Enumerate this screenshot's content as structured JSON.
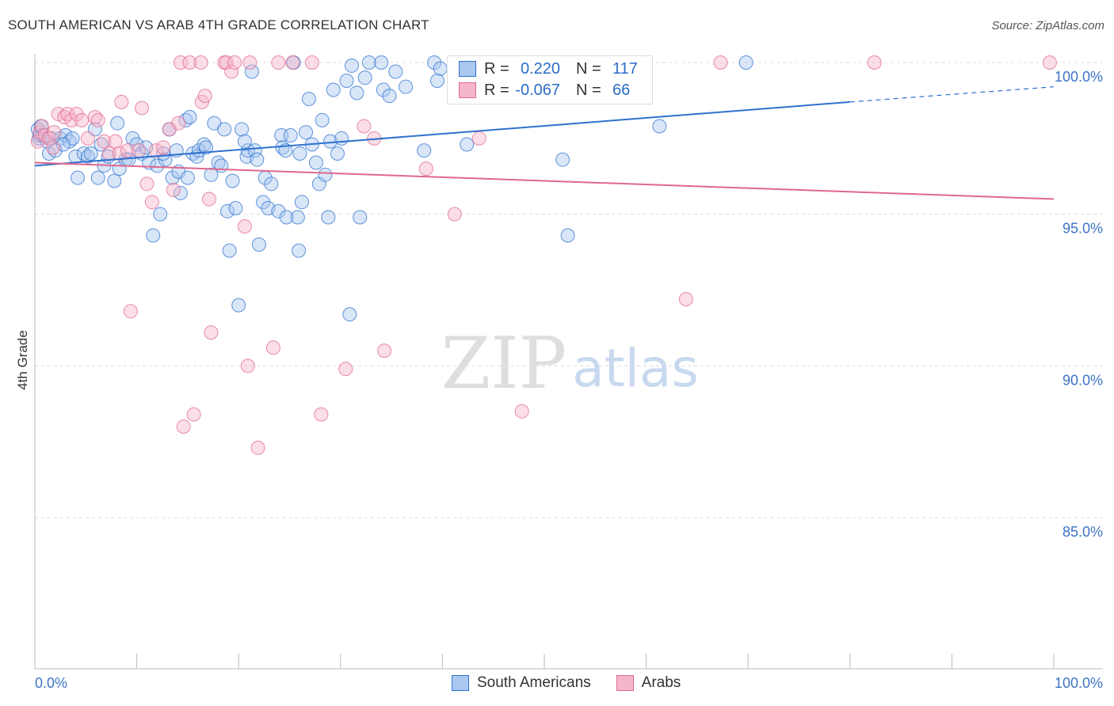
{
  "header": {
    "title": "SOUTH AMERICAN VS ARAB 4TH GRADE CORRELATION CHART",
    "source": "Source: ZipAtlas.com"
  },
  "watermark": {
    "zip": "ZIP",
    "atlas": "atlas"
  },
  "colors": {
    "blue": "#2f72cf",
    "blue_fill": "#a9c7ef",
    "pink": "#e0688f",
    "pink_fill": "#f6b6c9",
    "tick_label": "#3d73c5"
  },
  "legend": {
    "rows": [
      {
        "r_label": "R =",
        "r_value": "0.220",
        "n_label": "N =",
        "n_value": "117"
      },
      {
        "r_label": "R =",
        "r_value": "-0.067",
        "n_label": "N =",
        "n_value": "66"
      }
    ]
  },
  "bottom_legend": {
    "series1": "South Americans",
    "series2": "Arabs"
  },
  "chart_data": {
    "type": "scatter",
    "title": "SOUTH AMERICAN VS ARAB 4TH GRADE CORRELATION CHART",
    "ylabel": "4th Grade",
    "xlabel": "",
    "xlim": [
      0,
      100
    ],
    "ylim": [
      80.5,
      100.3
    ],
    "x_tick_labels": [
      "0.0%",
      "100.0%"
    ],
    "y_ticks": [
      {
        "value": 100,
        "label": "100.0%"
      },
      {
        "value": 95,
        "label": "95.0%"
      },
      {
        "value": 90,
        "label": "90.0%"
      },
      {
        "value": 85,
        "label": "85.0%"
      }
    ],
    "grid": true,
    "legend_position": "top-center",
    "series": [
      {
        "name": "South Americans",
        "color": "#2f72cf",
        "r": 0.22,
        "n": 117,
        "trend": {
          "x": [
            0,
            80
          ],
          "y": [
            96.6,
            98.7
          ],
          "dashed_to": [
            100,
            99.2
          ]
        },
        "points": [
          [
            0.3,
            97.8
          ],
          [
            0.4,
            97.5
          ],
          [
            0.5,
            97.6
          ],
          [
            0.6,
            97.9
          ],
          [
            0.8,
            97.6
          ],
          [
            1.2,
            97.4
          ],
          [
            1.4,
            97.0
          ],
          [
            1.6,
            97.5
          ],
          [
            2.0,
            97.1
          ],
          [
            2.5,
            97.5
          ],
          [
            3.0,
            97.6
          ],
          [
            3.4,
            97.4
          ],
          [
            3.7,
            97.5
          ],
          [
            4.0,
            96.9
          ],
          [
            4.2,
            96.2
          ],
          [
            4.8,
            97.0
          ],
          [
            5.2,
            96.9
          ],
          [
            5.5,
            97.0
          ],
          [
            6.2,
            96.2
          ],
          [
            6.8,
            96.6
          ],
          [
            7.2,
            96.9
          ],
          [
            7.8,
            96.1
          ],
          [
            8.1,
            98.0
          ],
          [
            8.3,
            96.5
          ],
          [
            8.9,
            96.8
          ],
          [
            9.6,
            97.5
          ],
          [
            10.0,
            97.3
          ],
          [
            10.5,
            97.0
          ],
          [
            10.9,
            97.2
          ],
          [
            11.2,
            96.7
          ],
          [
            11.6,
            94.3
          ],
          [
            12.0,
            96.6
          ],
          [
            12.3,
            95.0
          ],
          [
            12.8,
            96.8
          ],
          [
            13.2,
            97.8
          ],
          [
            13.5,
            96.2
          ],
          [
            14.1,
            96.4
          ],
          [
            14.3,
            95.7
          ],
          [
            15.0,
            96.2
          ],
          [
            14.8,
            98.1
          ],
          [
            15.2,
            98.2
          ],
          [
            15.5,
            97.0
          ],
          [
            15.9,
            96.9
          ],
          [
            16.1,
            97.1
          ],
          [
            16.6,
            97.3
          ],
          [
            16.8,
            97.2
          ],
          [
            17.3,
            96.3
          ],
          [
            17.6,
            98.0
          ],
          [
            18.0,
            96.7
          ],
          [
            18.3,
            96.6
          ],
          [
            18.6,
            97.8
          ],
          [
            18.9,
            95.1
          ],
          [
            19.1,
            93.8
          ],
          [
            19.4,
            96.1
          ],
          [
            19.7,
            95.2
          ],
          [
            20.0,
            92.0
          ],
          [
            20.3,
            97.8
          ],
          [
            20.8,
            96.9
          ],
          [
            20.9,
            97.1
          ],
          [
            21.3,
            99.7
          ],
          [
            21.6,
            97.1
          ],
          [
            21.8,
            96.8
          ],
          [
            22.0,
            94.0
          ],
          [
            22.4,
            95.4
          ],
          [
            22.6,
            96.2
          ],
          [
            22.9,
            95.2
          ],
          [
            23.2,
            96.0
          ],
          [
            23.9,
            95.1
          ],
          [
            24.2,
            97.6
          ],
          [
            24.3,
            97.2
          ],
          [
            24.7,
            94.9
          ],
          [
            25.1,
            97.6
          ],
          [
            25.4,
            100.0
          ],
          [
            25.8,
            94.9
          ],
          [
            25.9,
            93.8
          ],
          [
            26.2,
            95.4
          ],
          [
            26.6,
            97.7
          ],
          [
            26.9,
            98.8
          ],
          [
            27.2,
            97.3
          ],
          [
            27.6,
            96.7
          ],
          [
            27.9,
            96.0
          ],
          [
            28.2,
            98.1
          ],
          [
            28.5,
            96.3
          ],
          [
            28.8,
            94.9
          ],
          [
            29.0,
            97.4
          ],
          [
            29.3,
            99.1
          ],
          [
            29.7,
            97.0
          ],
          [
            30.1,
            97.5
          ],
          [
            30.6,
            99.4
          ],
          [
            30.9,
            91.7
          ],
          [
            31.1,
            99.9
          ],
          [
            31.9,
            94.9
          ],
          [
            31.6,
            99.0
          ],
          [
            32.4,
            99.5
          ],
          [
            32.8,
            100.0
          ],
          [
            34.0,
            100.0
          ],
          [
            34.2,
            99.1
          ],
          [
            34.8,
            98.9
          ],
          [
            35.4,
            99.7
          ],
          [
            36.4,
            99.2
          ],
          [
            38.2,
            97.1
          ],
          [
            39.2,
            100.0
          ],
          [
            39.5,
            99.4
          ],
          [
            39.8,
            99.8
          ],
          [
            42.4,
            97.3
          ],
          [
            46.5,
            99.7
          ],
          [
            47.3,
            100.0
          ],
          [
            49.6,
            99.5
          ],
          [
            51.8,
            96.8
          ],
          [
            52.3,
            94.3
          ],
          [
            61.3,
            97.9
          ],
          [
            69.8,
            100.0
          ],
          [
            2.8,
            97.3
          ],
          [
            6.5,
            97.3
          ],
          [
            9.2,
            96.8
          ],
          [
            12.6,
            97.0
          ],
          [
            20.6,
            97.4
          ],
          [
            26.0,
            97.0
          ],
          [
            5.9,
            97.8
          ],
          [
            13.9,
            97.1
          ],
          [
            24.6,
            97.1
          ]
        ]
      },
      {
        "name": "Arabs",
        "color": "#e0688f",
        "r": -0.067,
        "n": 66,
        "trend": {
          "x": [
            0,
            100
          ],
          "y": [
            96.7,
            95.5
          ]
        },
        "points": [
          [
            0.3,
            97.4
          ],
          [
            0.5,
            97.7
          ],
          [
            0.7,
            97.9
          ],
          [
            1.0,
            97.6
          ],
          [
            1.4,
            97.5
          ],
          [
            1.9,
            97.7
          ],
          [
            2.3,
            98.3
          ],
          [
            2.9,
            98.2
          ],
          [
            3.2,
            98.3
          ],
          [
            3.6,
            98.1
          ],
          [
            4.1,
            98.3
          ],
          [
            4.6,
            98.1
          ],
          [
            5.2,
            97.5
          ],
          [
            5.9,
            98.2
          ],
          [
            6.2,
            98.1
          ],
          [
            6.8,
            97.4
          ],
          [
            7.3,
            97.0
          ],
          [
            7.9,
            97.4
          ],
          [
            8.3,
            97.0
          ],
          [
            8.5,
            98.7
          ],
          [
            9.1,
            97.1
          ],
          [
            9.4,
            91.8
          ],
          [
            10.2,
            97.1
          ],
          [
            10.5,
            98.5
          ],
          [
            11.0,
            96.0
          ],
          [
            11.5,
            95.4
          ],
          [
            11.9,
            97.1
          ],
          [
            12.6,
            97.2
          ],
          [
            13.2,
            97.8
          ],
          [
            13.6,
            95.8
          ],
          [
            14.1,
            98.0
          ],
          [
            14.3,
            100.0
          ],
          [
            14.6,
            88.0
          ],
          [
            15.2,
            100.0
          ],
          [
            15.6,
            88.4
          ],
          [
            16.3,
            100.0
          ],
          [
            16.4,
            98.7
          ],
          [
            16.7,
            98.9
          ],
          [
            17.1,
            95.5
          ],
          [
            17.3,
            91.1
          ],
          [
            18.6,
            100.0
          ],
          [
            18.8,
            100.0
          ],
          [
            19.3,
            99.7
          ],
          [
            19.6,
            100.0
          ],
          [
            20.6,
            94.6
          ],
          [
            20.9,
            90.0
          ],
          [
            21.1,
            100.0
          ],
          [
            21.9,
            87.3
          ],
          [
            23.4,
            90.6
          ],
          [
            23.9,
            100.0
          ],
          [
            25.3,
            100.0
          ],
          [
            27.2,
            100.0
          ],
          [
            28.1,
            88.4
          ],
          [
            30.5,
            89.9
          ],
          [
            32.3,
            97.9
          ],
          [
            33.3,
            97.5
          ],
          [
            34.3,
            90.5
          ],
          [
            38.4,
            96.5
          ],
          [
            41.2,
            95.0
          ],
          [
            43.6,
            97.5
          ],
          [
            47.8,
            88.5
          ],
          [
            63.9,
            92.2
          ],
          [
            67.3,
            100.0
          ],
          [
            82.4,
            100.0
          ],
          [
            99.6,
            100.0
          ],
          [
            1.8,
            97.2
          ]
        ]
      }
    ]
  }
}
